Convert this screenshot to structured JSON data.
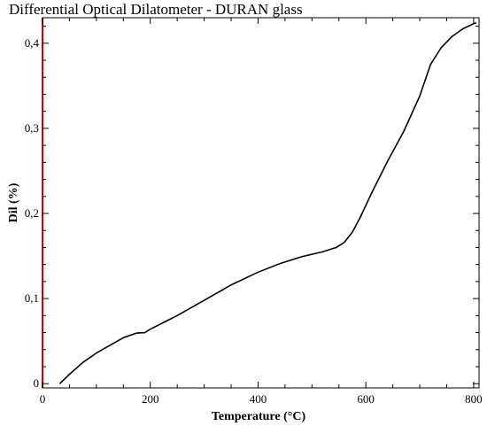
{
  "chart_data": {
    "type": "line",
    "title": "Differential Optical Dilatometer - DURAN glass",
    "xlabel": "Temperature (°C)",
    "ylabel": "Dil (%)",
    "xlim": [
      0,
      810
    ],
    "ylim": [
      -0.005,
      0.43
    ],
    "x_ticks": [
      0,
      200,
      400,
      600,
      800
    ],
    "x_tick_labels": [
      "0",
      "200",
      "400",
      "600",
      "800"
    ],
    "y_ticks": [
      0,
      0.1,
      0.2,
      0.3,
      0.4
    ],
    "y_tick_labels": [
      "0",
      "0,1",
      "0,2",
      "0,3",
      "0,4"
    ],
    "grid": false,
    "colors": {
      "line": "#000000",
      "left_axis": "#cc0000",
      "frame": "#000000"
    },
    "series": [
      {
        "x": [
          32,
          50,
          75,
          100,
          125,
          150,
          175,
          190,
          200,
          225,
          250,
          300,
          350,
          400,
          440,
          480,
          520,
          545,
          560,
          575,
          590,
          610,
          640,
          670,
          700,
          720,
          740,
          760,
          780,
          800,
          805
        ],
        "y": [
          0.0,
          0.011,
          0.025,
          0.036,
          0.045,
          0.054,
          0.0595,
          0.06,
          0.064,
          0.072,
          0.08,
          0.098,
          0.116,
          0.131,
          0.141,
          0.149,
          0.155,
          0.16,
          0.166,
          0.178,
          0.196,
          0.223,
          0.261,
          0.296,
          0.338,
          0.375,
          0.395,
          0.408,
          0.417,
          0.423,
          0.424
        ]
      }
    ]
  }
}
